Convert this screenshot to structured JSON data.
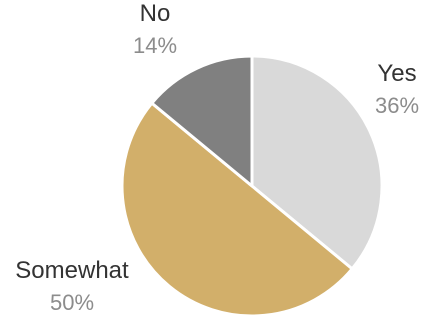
{
  "chart_data": {
    "type": "pie",
    "title": "",
    "categories": [
      "Yes",
      "Somewhat",
      "No"
    ],
    "values": [
      36,
      50,
      14
    ],
    "value_labels": [
      "36%",
      "50%",
      "14%"
    ],
    "colors": [
      "#d9d9d9",
      "#d2af6a",
      "#808080"
    ],
    "start_angle_deg": 0,
    "direction": "clockwise"
  }
}
